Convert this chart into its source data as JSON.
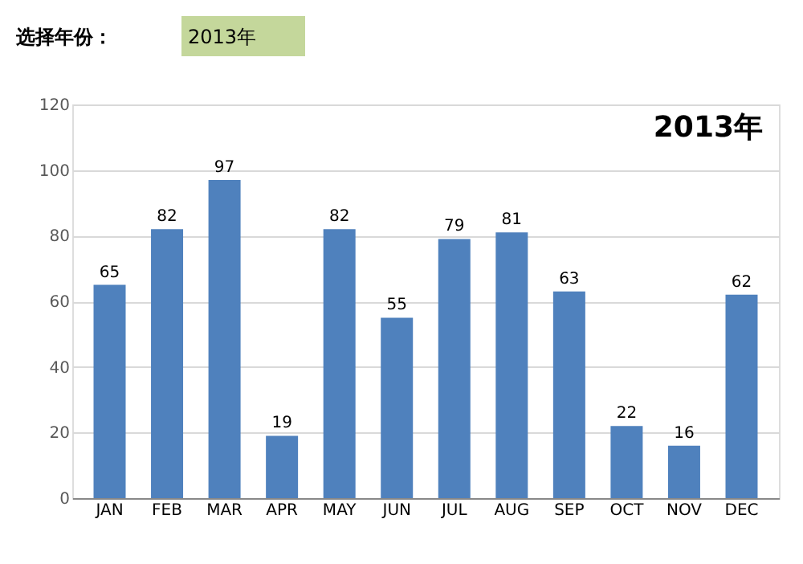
{
  "chart_data": {
    "type": "bar",
    "title": "2013年",
    "annotations": [
      "选择年份：",
      "2013年"
    ],
    "categories": [
      "JAN",
      "FEB",
      "MAR",
      "APR",
      "MAY",
      "JUN",
      "JUL",
      "AUG",
      "SEP",
      "OCT",
      "NOV",
      "DEC"
    ],
    "values": [
      65,
      82,
      97,
      19,
      82,
      55,
      79,
      81,
      63,
      22,
      16,
      62
    ],
    "color": "#4f81bd",
    "ylim": [
      0,
      120
    ],
    "yticks": [
      0,
      20,
      40,
      60,
      80,
      100,
      120
    ],
    "grid": "y",
    "data_labels": true
  }
}
